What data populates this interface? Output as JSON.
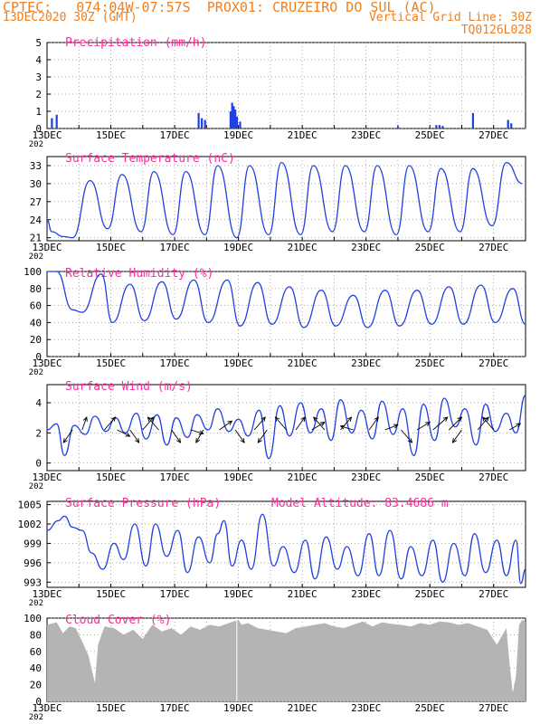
{
  "header": {
    "line1": "CPTEC:   074:04W-07:57S  PROX01: CRUZEIRO DO SUL (AC)",
    "line2_left": "13DEC2020 30Z (GMT)",
    "line2_right": "Vertical Grid Line: 30Z",
    "line3_right": "TQ0126L028"
  },
  "colors": {
    "header": "#f07f1e",
    "title": "#ff2b9b",
    "line": "#2040e0",
    "bar": "#2040e0",
    "cloud": "#b4b4b4",
    "grid": "#888888"
  },
  "x_tick_labels": [
    "13DEC",
    "15DEC",
    "17DEC",
    "19DEC",
    "21DEC",
    "23DEC",
    "25DEC",
    "27DEC"
  ],
  "x_overflow_label": "202",
  "chart_data": [
    {
      "type": "bar",
      "title": "Precipitation (mm/h)",
      "ylim": [
        0,
        5
      ],
      "yticks": [
        "0",
        "1",
        "2",
        "3",
        "4",
        "5"
      ],
      "x_days": [
        0.15,
        0.3,
        4.75,
        4.85,
        4.95,
        5.75,
        5.8,
        5.85,
        5.9,
        5.95,
        6.05,
        11.0,
        12.2,
        12.3,
        12.4,
        13.35,
        14.45,
        14.55
      ],
      "values": [
        0.6,
        0.8,
        0.9,
        0.6,
        0.5,
        1.0,
        1.5,
        1.3,
        1.1,
        0.7,
        0.4,
        0.1,
        0.2,
        0.2,
        0.15,
        0.9,
        0.5,
        0.3
      ]
    },
    {
      "type": "line",
      "title": "Surface Temperature (nC)",
      "ylim": [
        20.5,
        34.5
      ],
      "yticks": [
        "21",
        "24",
        "27",
        "30",
        "33"
      ],
      "x": [
        0,
        0.15,
        0.5,
        0.8,
        1.35,
        1.9,
        2.35,
        2.95,
        3.35,
        3.95,
        4.35,
        4.95,
        5.35,
        5.95,
        6.35,
        6.95,
        7.35,
        7.95,
        8.35,
        8.95,
        9.35,
        9.95,
        10.35,
        10.95,
        11.35,
        11.95,
        12.35,
        12.95,
        13.35,
        13.95,
        14.4,
        14.9
      ],
      "y": [
        24,
        22,
        21.2,
        21,
        30.5,
        22.5,
        31.5,
        22,
        32,
        21.5,
        32,
        21.5,
        33,
        21,
        33,
        21.5,
        33.5,
        21.5,
        33,
        22,
        33,
        22,
        33,
        21.5,
        33,
        22,
        32.5,
        22,
        32.5,
        23,
        33.5,
        30
      ]
    },
    {
      "type": "line",
      "title": "Relative Humidity (%)",
      "ylim": [
        0,
        100
      ],
      "yticks": [
        "0",
        "20",
        "40",
        "60",
        "80",
        "100"
      ],
      "x": [
        0,
        0.3,
        0.8,
        1.1,
        1.7,
        2.05,
        2.6,
        3.05,
        3.6,
        4.05,
        4.6,
        5.05,
        5.65,
        6.05,
        6.6,
        7.05,
        7.6,
        8.05,
        8.6,
        9.05,
        9.6,
        10.05,
        10.6,
        11.05,
        11.6,
        12.05,
        12.6,
        13.05,
        13.6,
        14.05,
        14.6,
        15.0
      ],
      "y": [
        100,
        100,
        55,
        52,
        97,
        40,
        85,
        42,
        88,
        44,
        90,
        40,
        90,
        36,
        87,
        38,
        82,
        34,
        78,
        36,
        72,
        34,
        78,
        36,
        78,
        38,
        82,
        38,
        84,
        40,
        80,
        38
      ]
    },
    {
      "type": "line",
      "title": "Surface Wind (m/s)",
      "ylim": [
        -0.5,
        5.2
      ],
      "yticks": [
        "0",
        "2",
        "4"
      ],
      "x": [
        0,
        0.3,
        0.55,
        0.85,
        1.2,
        1.5,
        1.85,
        2.15,
        2.45,
        2.8,
        3.1,
        3.45,
        3.75,
        4.05,
        4.4,
        4.7,
        5.05,
        5.35,
        5.7,
        6.0,
        6.3,
        6.65,
        6.95,
        7.3,
        7.6,
        7.95,
        8.25,
        8.6,
        8.9,
        9.2,
        9.55,
        9.85,
        10.2,
        10.5,
        10.85,
        11.15,
        11.5,
        11.8,
        12.15,
        12.45,
        12.8,
        13.1,
        13.45,
        13.75,
        14.05,
        14.4,
        14.7,
        15.0
      ],
      "y": [
        2.2,
        2.6,
        0.5,
        2.5,
        1.9,
        3.1,
        2.1,
        3.0,
        2.0,
        3.3,
        1.6,
        3.2,
        1.2,
        3.0,
        1.7,
        3.2,
        2.2,
        3.6,
        2.1,
        2.9,
        1.8,
        3.5,
        0.3,
        3.8,
        1.8,
        4.0,
        2.0,
        3.6,
        1.5,
        4.2,
        2.0,
        3.5,
        1.6,
        4.1,
        1.9,
        3.6,
        0.5,
        3.9,
        1.5,
        4.3,
        2.4,
        3.6,
        1.2,
        3.9,
        2.1,
        3.3,
        2.0,
        4.5
      ]
    },
    {
      "type": "line",
      "title": "Surface Pressure (hPa)",
      "annotation": "Model Altitude: 83.4686  m",
      "ylim": [
        992.2,
        1005.5
      ],
      "yticks": [
        "993",
        "996",
        "999",
        "1002",
        "1005"
      ],
      "x": [
        0,
        0.35,
        0.55,
        0.8,
        1.1,
        1.4,
        1.75,
        2.1,
        2.4,
        2.75,
        3.1,
        3.4,
        3.75,
        4.1,
        4.4,
        4.75,
        5.1,
        5.35,
        5.55,
        5.8,
        6.1,
        6.4,
        6.75,
        7.1,
        7.4,
        7.75,
        8.1,
        8.4,
        8.75,
        9.1,
        9.4,
        9.75,
        10.1,
        10.4,
        10.75,
        11.1,
        11.4,
        11.75,
        12.1,
        12.4,
        12.75,
        13.1,
        13.4,
        13.75,
        14.1,
        14.4,
        14.7,
        14.85,
        15.0
      ],
      "y": [
        1001,
        1002.5,
        1003.2,
        1001.5,
        1001,
        997.5,
        995,
        999,
        996.5,
        1002,
        995.5,
        1002,
        997,
        1001,
        994.5,
        1000,
        996,
        1000.5,
        1002.5,
        995.5,
        999.5,
        995,
        1003.5,
        995.5,
        998.5,
        994.5,
        999.5,
        993.5,
        1000,
        995,
        998.5,
        994,
        1000.5,
        994,
        1001,
        993.5,
        998.5,
        994,
        999.5,
        993,
        999,
        994,
        1000.5,
        994.5,
        999.5,
        994,
        999.5,
        992.8,
        995
      ]
    },
    {
      "type": "area",
      "title": "Cloud Cover (%)",
      "ylim": [
        0,
        100
      ],
      "yticks": [
        "0",
        "20",
        "40",
        "60",
        "80",
        "100"
      ],
      "x": [
        0,
        0.3,
        0.5,
        0.7,
        0.9,
        1.1,
        1.3,
        1.5,
        1.6,
        1.8,
        2.1,
        2.4,
        2.7,
        3.0,
        3.3,
        3.6,
        3.9,
        4.2,
        4.5,
        4.8,
        5.1,
        5.4,
        5.7,
        6.0,
        6.1,
        6.3,
        6.6,
        6.9,
        7.2,
        7.5,
        7.8,
        8.1,
        8.4,
        8.7,
        9.0,
        9.3,
        9.6,
        9.9,
        10.2,
        10.5,
        10.8,
        11.1,
        11.4,
        11.7,
        12.0,
        12.3,
        12.6,
        12.9,
        13.2,
        13.5,
        13.8,
        14.1,
        14.4,
        14.5,
        14.6,
        14.7,
        14.8,
        14.9,
        15.0
      ],
      "y": [
        92,
        95,
        82,
        90,
        88,
        72,
        55,
        22,
        68,
        90,
        88,
        80,
        86,
        75,
        92,
        84,
        88,
        80,
        90,
        86,
        92,
        90,
        94,
        98,
        92,
        94,
        88,
        86,
        84,
        82,
        88,
        90,
        92,
        94,
        90,
        88,
        92,
        96,
        90,
        95,
        93,
        92,
        90,
        94,
        92,
        96,
        95,
        92,
        94,
        90,
        86,
        68,
        88,
        45,
        10,
        30,
        92,
        98,
        96
      ]
    }
  ]
}
